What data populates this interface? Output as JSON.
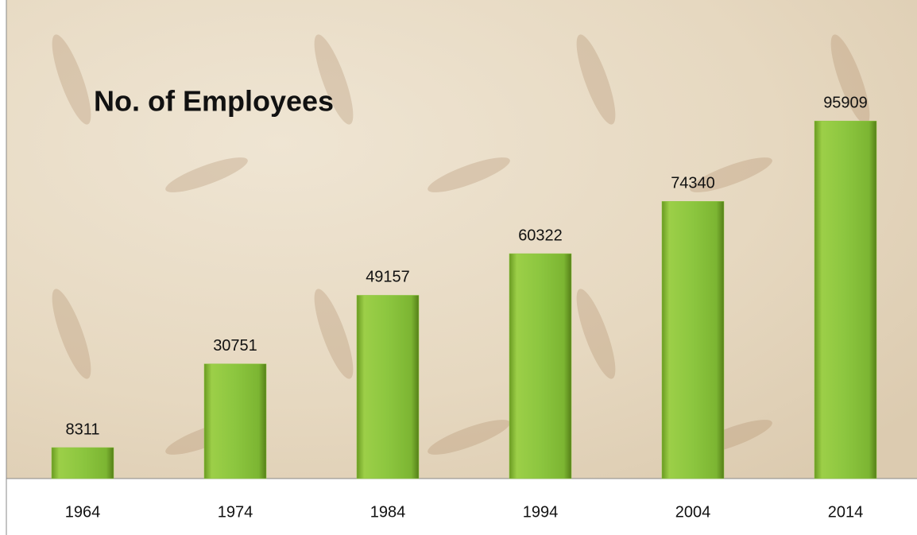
{
  "chart_data": {
    "type": "bar",
    "title": "No. of Employees",
    "categories": [
      "1964",
      "1974",
      "1984",
      "1994",
      "2004",
      "2014"
    ],
    "values": [
      8311,
      30751,
      49157,
      60322,
      74340,
      95909
    ],
    "color": "#8cc63f",
    "ylim": [
      0,
      100000
    ]
  }
}
